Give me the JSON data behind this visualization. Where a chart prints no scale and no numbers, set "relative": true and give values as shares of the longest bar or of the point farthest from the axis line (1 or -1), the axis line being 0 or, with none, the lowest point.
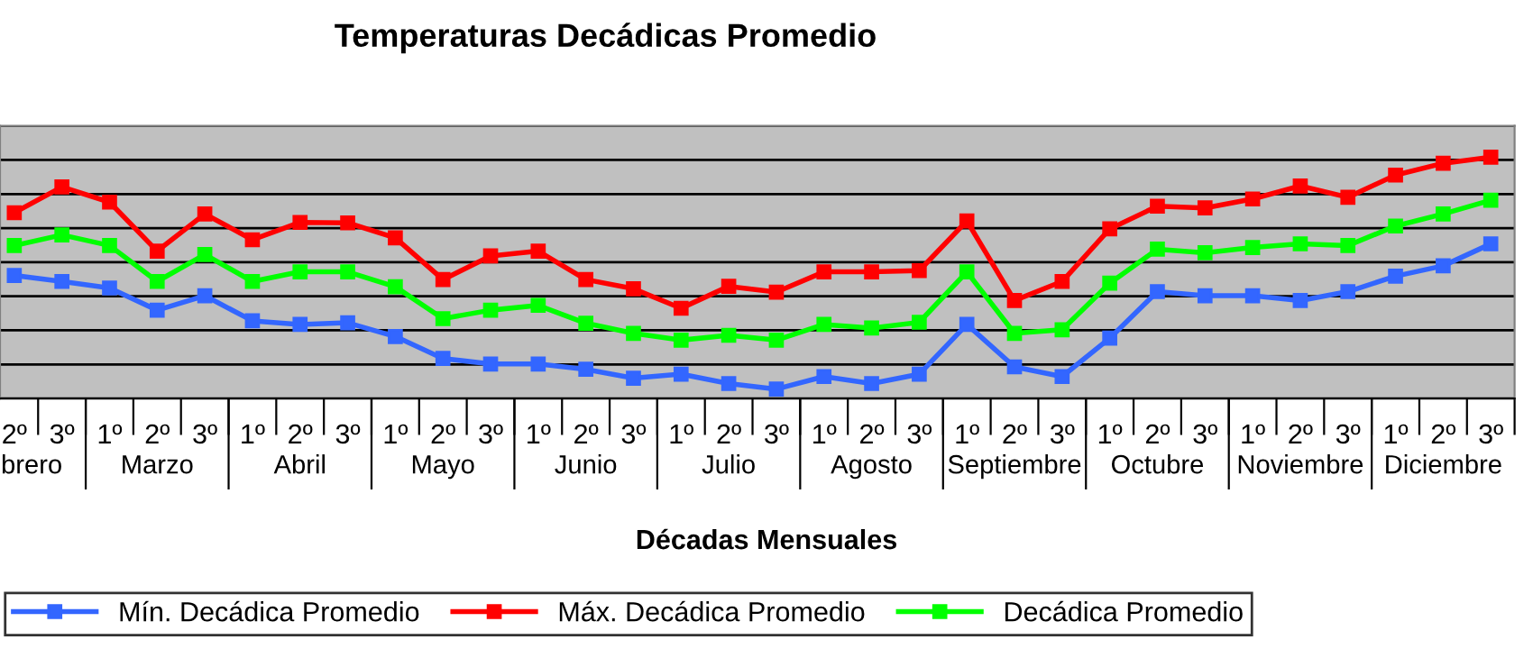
{
  "chart_data": {
    "type": "line",
    "title": "Temperaturas Decádicas Promedio",
    "xlabel": "Décadas Mensuales",
    "relative": true,
    "grid": "y",
    "legend": "bottom",
    "marker": "square",
    "line_style": "solid",
    "categories": [
      "2º",
      "3º",
      "1º",
      "2º",
      "3º",
      "1º",
      "2º",
      "3º",
      "1º",
      "2º",
      "3º",
      "1º",
      "2º",
      "3º",
      "1º",
      "2º",
      "3º",
      "1º",
      "2º",
      "3º",
      "1º",
      "2º",
      "3º",
      "1º",
      "2º",
      "3º",
      "1º",
      "2º",
      "3º",
      "1º",
      "2º",
      "3º"
    ],
    "annotations": [
      "brero",
      "Marzo",
      "Abril",
      "Mayo",
      "Junio",
      "Julio",
      "Agosto",
      "Septiembre",
      "Octubre",
      "Noviembre",
      "Diciembre"
    ],
    "series": [
      {
        "name": "Mín. Decádica Promedio",
        "color": "#3366ff",
        "values": [
          0.51,
          0.485,
          0.458,
          0.366,
          0.426,
          0.322,
          0.307,
          0.314,
          0.257,
          0.166,
          0.143,
          0.143,
          0.121,
          0.084,
          0.101,
          0.062,
          0.039,
          0.091,
          0.062,
          0.101,
          0.307,
          0.131,
          0.091,
          0.25,
          0.443,
          0.426,
          0.426,
          0.406,
          0.443,
          0.507,
          0.55,
          0.641
        ]
      },
      {
        "name": "Máx. Decádica Promedio",
        "color": "#ff0000",
        "values": [
          0.77,
          0.877,
          0.814,
          0.611,
          0.765,
          0.658,
          0.73,
          0.728,
          0.666,
          0.493,
          0.591,
          0.611,
          0.493,
          0.455,
          0.374,
          0.465,
          0.441,
          0.525,
          0.525,
          0.53,
          0.736,
          0.406,
          0.485,
          0.703,
          0.797,
          0.79,
          0.827,
          0.881,
          0.834,
          0.926,
          0.975,
          1.0
        ]
      },
      {
        "name": "Decádica Promedio",
        "color": "#00ff00",
        "values": [
          0.634,
          0.678,
          0.634,
          0.485,
          0.597,
          0.485,
          0.525,
          0.525,
          0.463,
          0.331,
          0.366,
          0.386,
          0.312,
          0.27,
          0.242,
          0.262,
          0.242,
          0.307,
          0.292,
          0.316,
          0.525,
          0.27,
          0.285,
          0.478,
          0.619,
          0.604,
          0.626,
          0.641,
          0.634,
          0.715,
          0.765,
          0.822
        ]
      }
    ]
  }
}
